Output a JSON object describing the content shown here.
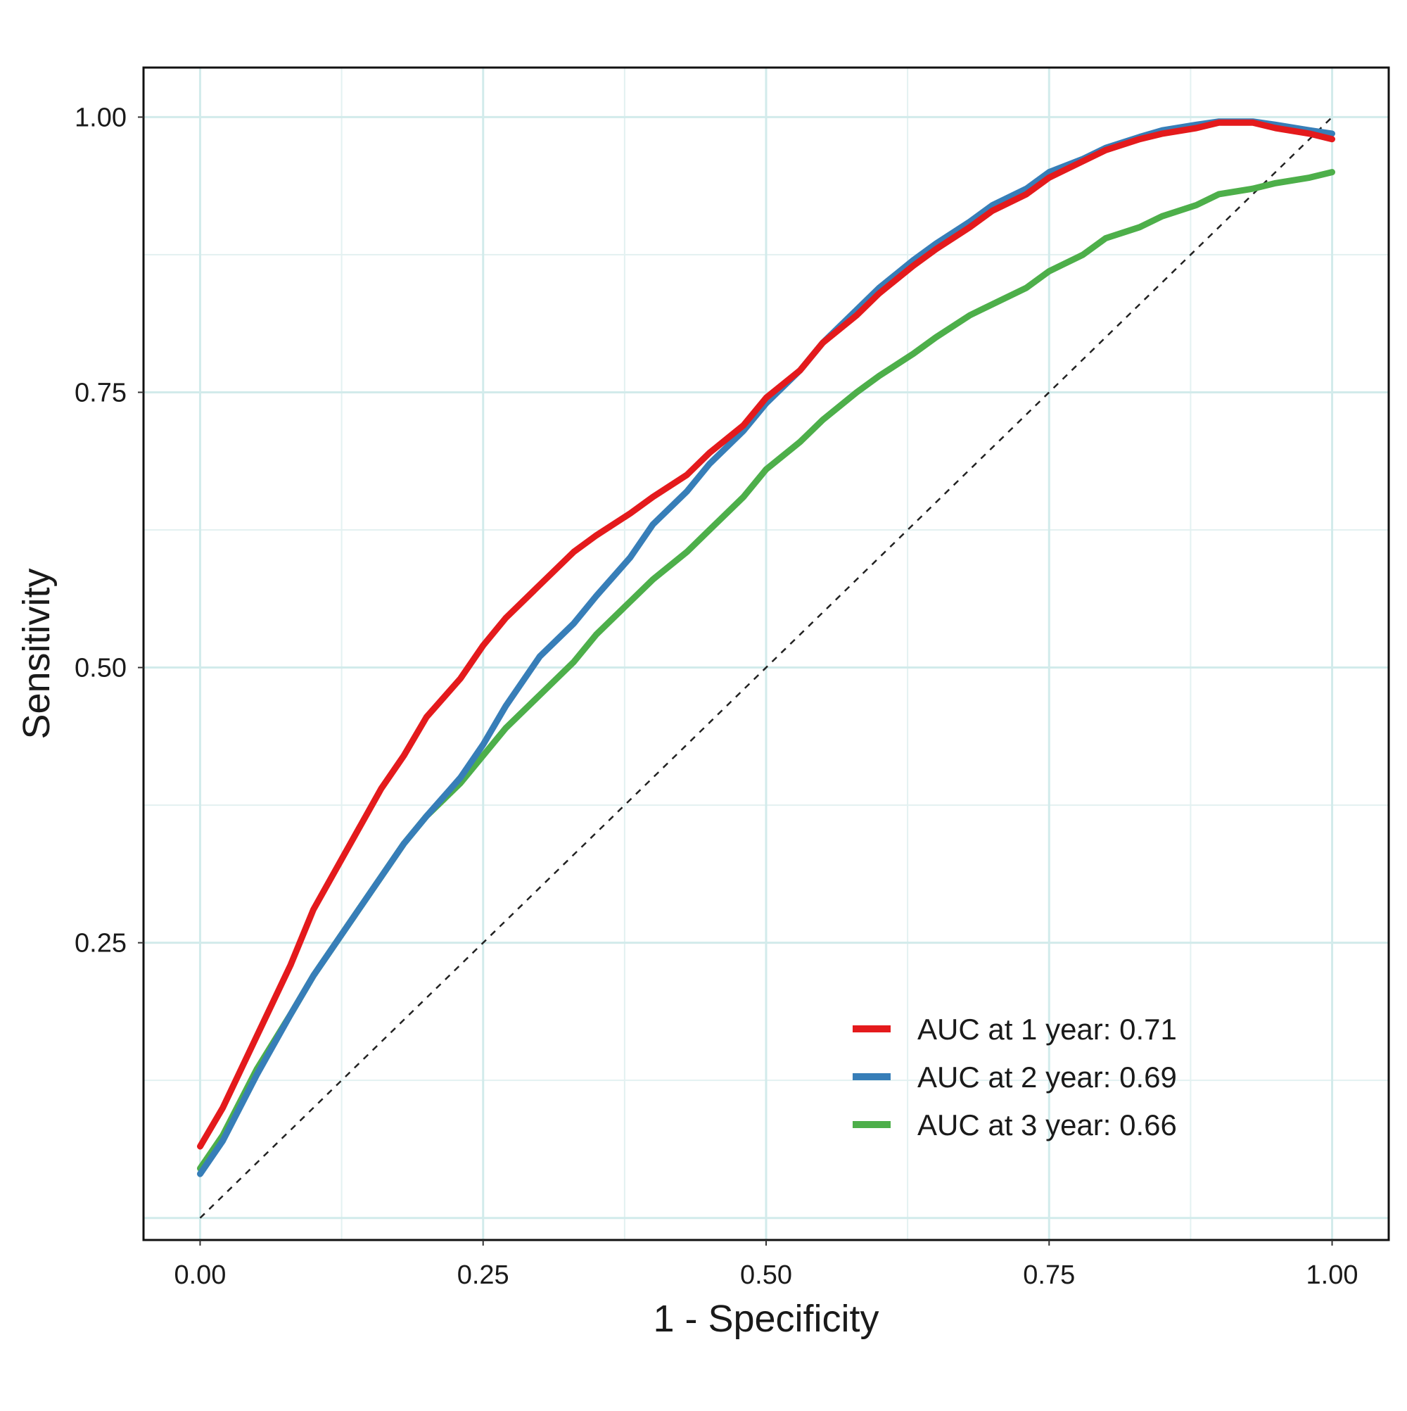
{
  "chart_data": {
    "type": "line",
    "title": "",
    "xlabel": "1 - Specificity",
    "ylabel": "Sensitivity",
    "xlim": [
      -0.05,
      1.05
    ],
    "ylim": [
      -0.02,
      1.045
    ],
    "x_ticks": [
      "0.00",
      "0.25",
      "0.50",
      "0.75",
      "1.00"
    ],
    "y_ticks": [
      "0.25",
      "0.50",
      "0.75",
      "1.00"
    ],
    "grid": true,
    "legend_position": "bottom-right",
    "reference_line": {
      "style": "dashed",
      "color": "#222222",
      "x": [
        0,
        1
      ],
      "y": [
        0,
        1
      ]
    },
    "series": [
      {
        "name": "AUC at 1 year: 0.71",
        "color": "#e41a1c",
        "x": [
          0,
          0.02,
          0.05,
          0.08,
          0.1,
          0.13,
          0.16,
          0.18,
          0.2,
          0.23,
          0.25,
          0.27,
          0.3,
          0.33,
          0.35,
          0.38,
          0.4,
          0.43,
          0.45,
          0.48,
          0.5,
          0.53,
          0.55,
          0.58,
          0.6,
          0.63,
          0.65,
          0.68,
          0.7,
          0.73,
          0.75,
          0.78,
          0.8,
          0.83,
          0.85,
          0.88,
          0.9,
          0.93,
          0.95,
          0.98,
          1.0
        ],
        "y": [
          0.065,
          0.1,
          0.165,
          0.23,
          0.28,
          0.335,
          0.39,
          0.42,
          0.455,
          0.49,
          0.52,
          0.545,
          0.575,
          0.605,
          0.62,
          0.64,
          0.655,
          0.675,
          0.695,
          0.72,
          0.745,
          0.77,
          0.795,
          0.82,
          0.84,
          0.865,
          0.88,
          0.9,
          0.915,
          0.93,
          0.945,
          0.96,
          0.97,
          0.98,
          0.985,
          0.99,
          0.995,
          0.995,
          0.99,
          0.985,
          0.98
        ]
      },
      {
        "name": "AUC at 2 year: 0.69",
        "color": "#377eb8",
        "x": [
          0,
          0.02,
          0.05,
          0.08,
          0.1,
          0.13,
          0.16,
          0.18,
          0.2,
          0.23,
          0.25,
          0.27,
          0.3,
          0.33,
          0.35,
          0.38,
          0.4,
          0.43,
          0.45,
          0.48,
          0.5,
          0.53,
          0.55,
          0.58,
          0.6,
          0.63,
          0.65,
          0.68,
          0.7,
          0.73,
          0.75,
          0.78,
          0.8,
          0.83,
          0.85,
          0.88,
          0.9,
          0.93,
          0.95,
          0.98,
          1.0
        ],
        "y": [
          0.04,
          0.07,
          0.13,
          0.185,
          0.22,
          0.265,
          0.31,
          0.34,
          0.365,
          0.4,
          0.43,
          0.465,
          0.51,
          0.54,
          0.565,
          0.6,
          0.63,
          0.66,
          0.685,
          0.715,
          0.74,
          0.77,
          0.795,
          0.825,
          0.845,
          0.87,
          0.885,
          0.905,
          0.92,
          0.935,
          0.95,
          0.962,
          0.972,
          0.982,
          0.988,
          0.993,
          0.996,
          0.996,
          0.993,
          0.988,
          0.985
        ]
      },
      {
        "name": "AUC at 3 year: 0.66",
        "color": "#4daf4a",
        "x": [
          0,
          0.02,
          0.05,
          0.08,
          0.1,
          0.13,
          0.16,
          0.18,
          0.2,
          0.23,
          0.25,
          0.27,
          0.3,
          0.33,
          0.35,
          0.38,
          0.4,
          0.43,
          0.45,
          0.48,
          0.5,
          0.53,
          0.55,
          0.58,
          0.6,
          0.63,
          0.65,
          0.68,
          0.7,
          0.73,
          0.75,
          0.78,
          0.8,
          0.83,
          0.85,
          0.88,
          0.9,
          0.93,
          0.95,
          0.98,
          1.0
        ],
        "y": [
          0.045,
          0.075,
          0.135,
          0.185,
          0.22,
          0.265,
          0.31,
          0.34,
          0.365,
          0.395,
          0.42,
          0.445,
          0.475,
          0.505,
          0.53,
          0.56,
          0.58,
          0.605,
          0.625,
          0.655,
          0.68,
          0.705,
          0.725,
          0.75,
          0.765,
          0.785,
          0.8,
          0.82,
          0.83,
          0.845,
          0.86,
          0.875,
          0.89,
          0.9,
          0.91,
          0.92,
          0.93,
          0.935,
          0.94,
          0.945,
          0.95
        ]
      }
    ]
  }
}
